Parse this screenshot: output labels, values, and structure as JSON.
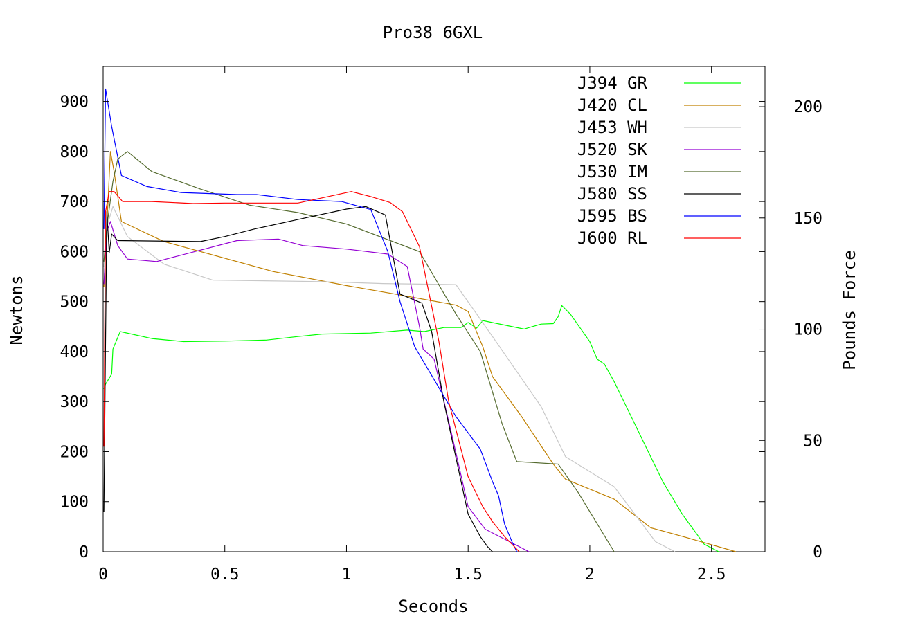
{
  "chart_data": {
    "type": "line",
    "title": "Pro38 6GXL",
    "xlabel": "Seconds",
    "ylabel": "Newtons",
    "y2label": "Pounds Force",
    "xlim": [
      0,
      2.72
    ],
    "ylim": [
      0,
      970
    ],
    "y2lim": [
      0,
      218.06
    ],
    "xticks": [
      0,
      0.5,
      1,
      1.5,
      2,
      2.5
    ],
    "xtick_labels": [
      "0",
      "0.5",
      "1",
      "1.5",
      "2",
      "2.5"
    ],
    "yticks": [
      0,
      100,
      200,
      300,
      400,
      500,
      600,
      700,
      800,
      900
    ],
    "ytick_labels": [
      "0",
      "100",
      "200",
      "300",
      "400",
      "500",
      "600",
      "700",
      "800",
      "900"
    ],
    "y2ticks": [
      0,
      50,
      100,
      150,
      200
    ],
    "y2tick_labels": [
      "0",
      "50",
      "100",
      "150",
      "200"
    ],
    "grid": false,
    "legend_position": "top-right",
    "series": [
      {
        "name": "J394 GR",
        "color": "#00ff00",
        "points": [
          [
            0.003,
            325
          ],
          [
            0.01,
            335
          ],
          [
            0.035,
            355
          ],
          [
            0.04,
            405
          ],
          [
            0.07,
            440
          ],
          [
            0.2,
            426
          ],
          [
            0.33,
            420
          ],
          [
            0.5,
            421
          ],
          [
            0.67,
            423
          ],
          [
            0.8,
            430
          ],
          [
            0.9,
            435
          ],
          [
            1.1,
            437
          ],
          [
            1.25,
            443
          ],
          [
            1.32,
            440
          ],
          [
            1.4,
            448
          ],
          [
            1.47,
            448
          ],
          [
            1.5,
            458
          ],
          [
            1.535,
            447
          ],
          [
            1.56,
            462
          ],
          [
            1.73,
            445
          ],
          [
            1.8,
            455
          ],
          [
            1.85,
            456
          ],
          [
            1.87,
            470
          ],
          [
            1.885,
            492
          ],
          [
            1.92,
            475
          ],
          [
            2.0,
            420
          ],
          [
            2.03,
            385
          ],
          [
            2.06,
            375
          ],
          [
            2.1,
            340
          ],
          [
            2.15,
            290
          ],
          [
            2.23,
            210
          ],
          [
            2.3,
            140
          ],
          [
            2.38,
            75
          ],
          [
            2.47,
            15
          ],
          [
            2.53,
            0
          ]
        ]
      },
      {
        "name": "J420 CL",
        "color": "#c08000",
        "points": [
          [
            0.003,
            530
          ],
          [
            0.015,
            650
          ],
          [
            0.03,
            800
          ],
          [
            0.045,
            760
          ],
          [
            0.075,
            660
          ],
          [
            0.25,
            620
          ],
          [
            0.7,
            560
          ],
          [
            1.0,
            532
          ],
          [
            1.2,
            515
          ],
          [
            1.45,
            493
          ],
          [
            1.5,
            480
          ],
          [
            1.56,
            410
          ],
          [
            1.6,
            350
          ],
          [
            1.72,
            270
          ],
          [
            1.85,
            175
          ],
          [
            1.9,
            145
          ],
          [
            2.1,
            105
          ],
          [
            2.25,
            48
          ],
          [
            2.4,
            28
          ],
          [
            2.6,
            0
          ]
        ]
      },
      {
        "name": "J453 WH",
        "color": "#c8c8c8",
        "points": [
          [
            0.003,
            570
          ],
          [
            0.015,
            650
          ],
          [
            0.04,
            690
          ],
          [
            0.1,
            630
          ],
          [
            0.25,
            575
          ],
          [
            0.45,
            543
          ],
          [
            0.9,
            540
          ],
          [
            1.15,
            536
          ],
          [
            1.45,
            534
          ],
          [
            1.6,
            430
          ],
          [
            1.8,
            290
          ],
          [
            1.9,
            190
          ],
          [
            2.1,
            130
          ],
          [
            2.27,
            20
          ],
          [
            2.35,
            0
          ]
        ]
      },
      {
        "name": "J520 SK",
        "color": "#9400d3",
        "points": [
          [
            0.003,
            535
          ],
          [
            0.015,
            640
          ],
          [
            0.03,
            660
          ],
          [
            0.06,
            612
          ],
          [
            0.1,
            585
          ],
          [
            0.22,
            580
          ],
          [
            0.55,
            622
          ],
          [
            0.72,
            625
          ],
          [
            0.82,
            612
          ],
          [
            1.0,
            605
          ],
          [
            1.17,
            595
          ],
          [
            1.25,
            570
          ],
          [
            1.3,
            450
          ],
          [
            1.315,
            405
          ],
          [
            1.36,
            385
          ],
          [
            1.43,
            240
          ],
          [
            1.5,
            90
          ],
          [
            1.57,
            45
          ],
          [
            1.65,
            25
          ],
          [
            1.75,
            0
          ]
        ]
      },
      {
        "name": "J530 IM",
        "color": "#556b2f",
        "points": [
          [
            0.003,
            580
          ],
          [
            0.015,
            650
          ],
          [
            0.04,
            740
          ],
          [
            0.06,
            785
          ],
          [
            0.1,
            800
          ],
          [
            0.2,
            760
          ],
          [
            0.4,
            725
          ],
          [
            0.6,
            693
          ],
          [
            0.8,
            678
          ],
          [
            1.0,
            655
          ],
          [
            1.3,
            600
          ],
          [
            1.45,
            475
          ],
          [
            1.55,
            400
          ],
          [
            1.64,
            255
          ],
          [
            1.7,
            180
          ],
          [
            1.87,
            175
          ],
          [
            1.95,
            120
          ],
          [
            2.1,
            0
          ]
        ]
      },
      {
        "name": "J580 SS",
        "color": "#000000",
        "points": [
          [
            0.003,
            80
          ],
          [
            0.015,
            680
          ],
          [
            0.025,
            598
          ],
          [
            0.035,
            635
          ],
          [
            0.06,
            622
          ],
          [
            0.4,
            620
          ],
          [
            0.5,
            630
          ],
          [
            0.62,
            645
          ],
          [
            0.8,
            664
          ],
          [
            1.0,
            685
          ],
          [
            1.08,
            690
          ],
          [
            1.16,
            673
          ],
          [
            1.22,
            515
          ],
          [
            1.31,
            497
          ],
          [
            1.35,
            440
          ],
          [
            1.4,
            300
          ],
          [
            1.5,
            75
          ],
          [
            1.55,
            30
          ],
          [
            1.58,
            10
          ],
          [
            1.6,
            0
          ]
        ]
      },
      {
        "name": "J595 BS",
        "color": "#0000ff",
        "points": [
          [
            0.003,
            645
          ],
          [
            0.01,
            925
          ],
          [
            0.035,
            850
          ],
          [
            0.075,
            752
          ],
          [
            0.18,
            730
          ],
          [
            0.32,
            718
          ],
          [
            0.55,
            714
          ],
          [
            0.63,
            714
          ],
          [
            0.8,
            704
          ],
          [
            0.98,
            700
          ],
          [
            1.1,
            684
          ],
          [
            1.17,
            600
          ],
          [
            1.22,
            500
          ],
          [
            1.28,
            410
          ],
          [
            1.45,
            270
          ],
          [
            1.55,
            205
          ],
          [
            1.6,
            140
          ],
          [
            1.625,
            112
          ],
          [
            1.65,
            55
          ],
          [
            1.68,
            20
          ],
          [
            1.7,
            0
          ]
        ]
      },
      {
        "name": "J600 RL",
        "color": "#ff0000",
        "points": [
          [
            0.003,
            210
          ],
          [
            0.01,
            680
          ],
          [
            0.025,
            720
          ],
          [
            0.045,
            720
          ],
          [
            0.08,
            700
          ],
          [
            0.2,
            700
          ],
          [
            0.37,
            696
          ],
          [
            0.5,
            697
          ],
          [
            0.8,
            697
          ],
          [
            1.02,
            720
          ],
          [
            1.1,
            710
          ],
          [
            1.18,
            698
          ],
          [
            1.23,
            680
          ],
          [
            1.3,
            610
          ],
          [
            1.38,
            420
          ],
          [
            1.42,
            300
          ],
          [
            1.5,
            150
          ],
          [
            1.56,
            90
          ],
          [
            1.6,
            60
          ],
          [
            1.65,
            30
          ],
          [
            1.71,
            0
          ]
        ]
      }
    ]
  }
}
